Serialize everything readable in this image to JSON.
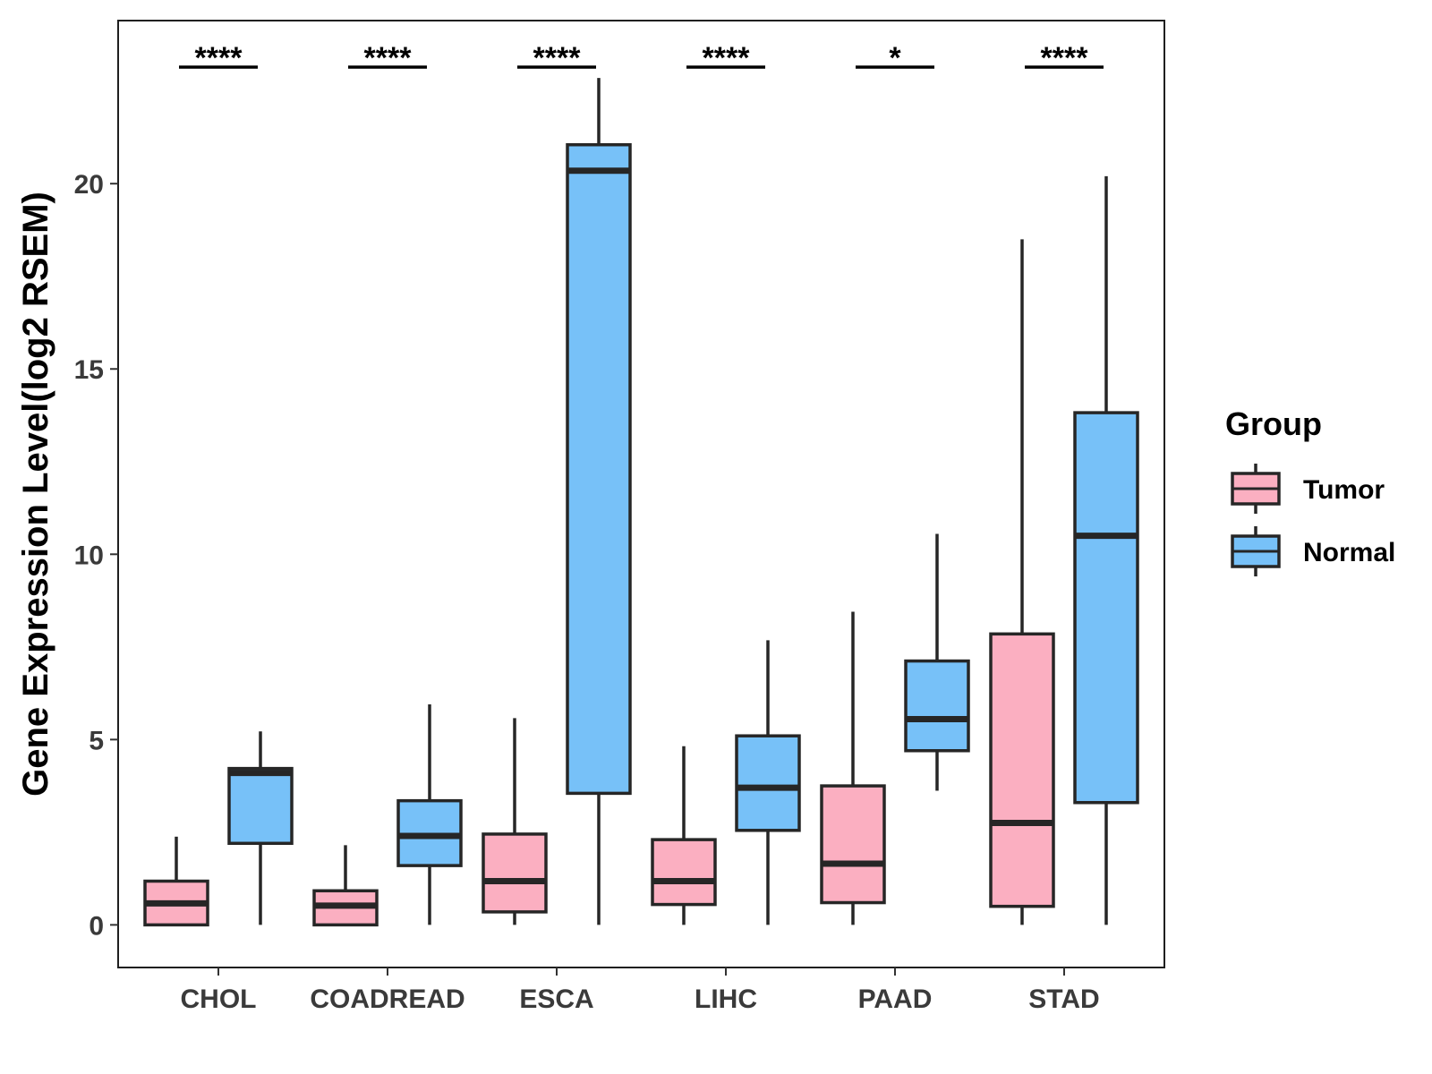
{
  "chart_data": {
    "type": "boxplot",
    "ylabel": "Gene Expression Level(log2 RSEM)",
    "xlabel": "",
    "ylim": [
      -1.15,
      24.4
    ],
    "yticks": [
      0,
      5,
      10,
      15,
      20
    ],
    "categories": [
      "CHOL",
      "COADREAD",
      "ESCA",
      "LIHC",
      "PAAD",
      "STAD"
    ],
    "legend": {
      "title": "Group",
      "position": "right",
      "entries": [
        {
          "label": "Tumor",
          "color": "#fbafc1"
        },
        {
          "label": "Normal",
          "color": "#77c1f8"
        }
      ]
    },
    "significance": [
      "****",
      "****",
      "****",
      "****",
      "*",
      "****"
    ],
    "series": [
      {
        "name": "Tumor",
        "color": "#fbafc1",
        "boxes": [
          {
            "min": 0.0,
            "q1": 0.0,
            "median": 0.58,
            "q3": 1.18,
            "max": 2.38
          },
          {
            "min": 0.0,
            "q1": 0.0,
            "median": 0.52,
            "q3": 0.92,
            "max": 2.15
          },
          {
            "min": 0.0,
            "q1": 0.35,
            "median": 1.18,
            "q3": 2.45,
            "max": 5.58
          },
          {
            "min": 0.0,
            "q1": 0.55,
            "median": 1.18,
            "q3": 2.3,
            "max": 4.82
          },
          {
            "min": 0.0,
            "q1": 0.6,
            "median": 1.65,
            "q3": 3.75,
            "max": 8.45
          },
          {
            "min": 0.0,
            "q1": 0.5,
            "median": 2.75,
            "q3": 7.85,
            "max": 18.5
          }
        ]
      },
      {
        "name": "Normal",
        "color": "#77c1f8",
        "boxes": [
          {
            "min": 0.0,
            "q1": 2.2,
            "median": 4.1,
            "q3": 4.22,
            "max": 5.22
          },
          {
            "min": 0.0,
            "q1": 1.6,
            "median": 2.4,
            "q3": 3.35,
            "max": 5.95
          },
          {
            "min": 0.0,
            "q1": 3.55,
            "median": 20.35,
            "q3": 21.05,
            "max": 22.85
          },
          {
            "min": 0.0,
            "q1": 2.55,
            "median": 3.7,
            "q3": 5.1,
            "max": 7.68
          },
          {
            "min": 3.62,
            "q1": 4.7,
            "median": 5.55,
            "q3": 7.12,
            "max": 10.55
          },
          {
            "min": 0.0,
            "q1": 3.3,
            "median": 10.5,
            "q3": 13.82,
            "max": 20.2
          }
        ]
      }
    ]
  }
}
